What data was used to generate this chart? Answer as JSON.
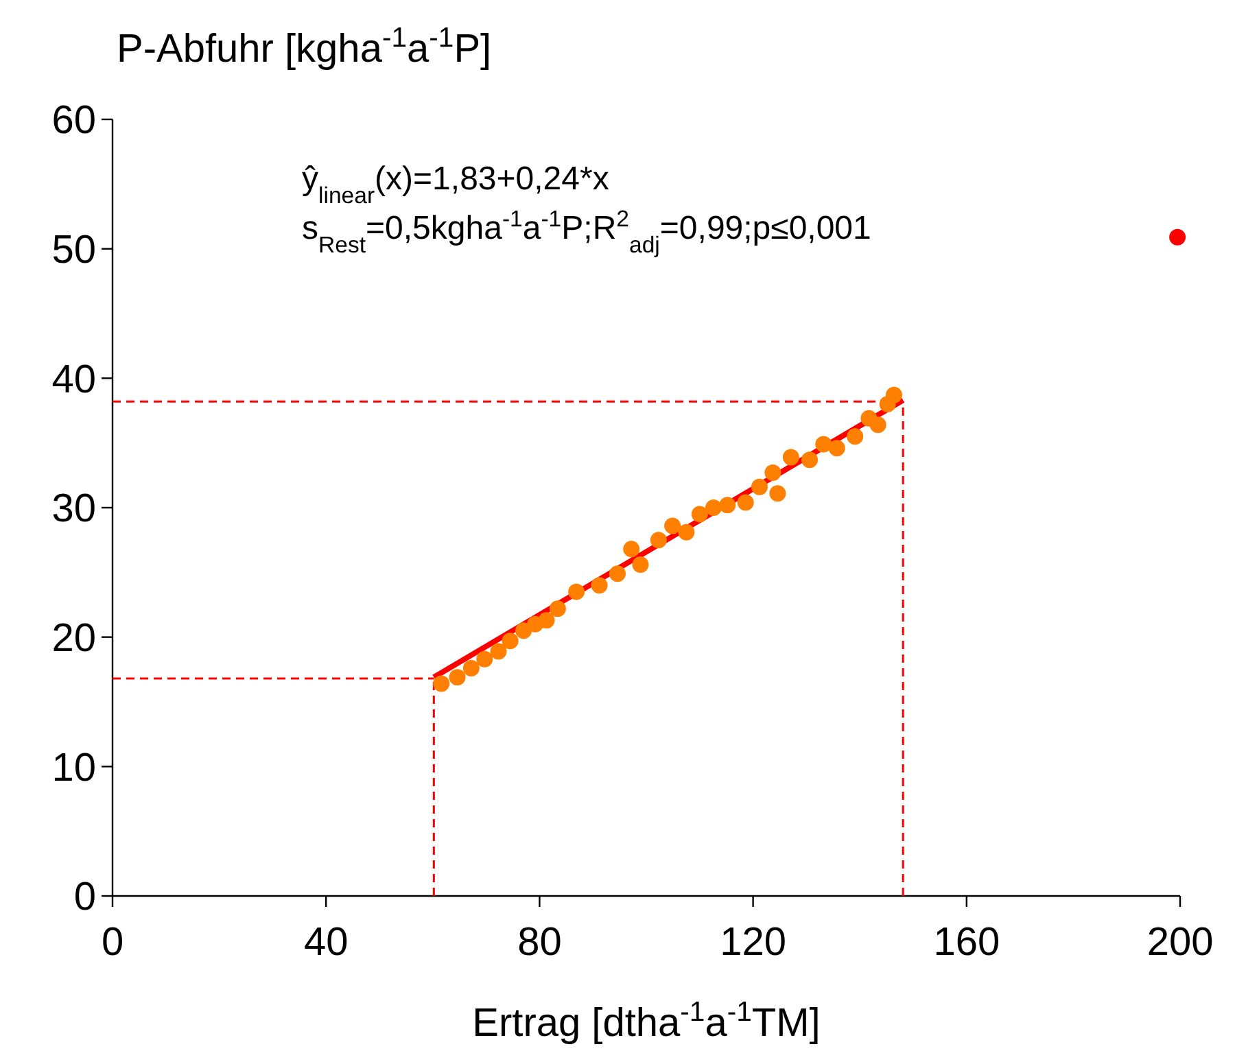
{
  "chart_data": {
    "type": "scatter",
    "ylabel": "P-Abfuhr [kgha$^{-1}$a$^{-1}$P]",
    "xlabel": "Ertrag [dtha$^{-1}$a$^{-1}$TM]",
    "xlim": [
      0,
      200
    ],
    "xticks": [
      0,
      40,
      80,
      120,
      160,
      200
    ],
    "ylim": [
      0,
      60
    ],
    "yticks": [
      0,
      10,
      20,
      30,
      40,
      50,
      60
    ],
    "grid": false,
    "annotations": [
      "ŷ$_{linear}$(x)=1,83+0,24*x",
      "s$_{Rest}$=0,5kgha$^{-1}$a$^{-1}$P;R$^{2}$$_{adj}$=0,99;p≤0,001"
    ],
    "ref_lines": [
      {
        "axis": "y",
        "value": 16.8,
        "color": "#ff0000",
        "line_style": "dashed"
      },
      {
        "axis": "y",
        "value": 38.2,
        "color": "#ff0000",
        "line_style": "dashed"
      },
      {
        "axis": "x",
        "value": 60.2,
        "color": "#ff0000",
        "line_style": "dashed"
      },
      {
        "axis": "x",
        "value": 148.1,
        "color": "#ff0000",
        "line_style": "dashed"
      }
    ],
    "series": [
      {
        "color": "#ff8000",
        "marker": "circle",
        "x": [
          61.6,
          64.6,
          67.2,
          69.7,
          72.3,
          74.5,
          77.0,
          79.2,
          81.3,
          83.4,
          86.9,
          91.2,
          94.6,
          97.2,
          98.9,
          102.3,
          104.9,
          107.5,
          110.0,
          112.6,
          115.2,
          118.6,
          121.2,
          123.7,
          124.6,
          127.1,
          130.6,
          133.2,
          135.7,
          139.1,
          141.7,
          143.4,
          145.2,
          146.4
        ],
        "values": [
          16.4,
          16.9,
          17.6,
          18.3,
          18.9,
          19.7,
          20.5,
          21.0,
          21.3,
          22.2,
          23.5,
          24.0,
          24.9,
          26.8,
          25.6,
          27.5,
          28.6,
          28.1,
          29.5,
          30.0,
          30.2,
          30.4,
          31.6,
          32.7,
          31.1,
          33.9,
          33.7,
          34.9,
          34.6,
          35.5,
          36.9,
          36.4,
          38.0,
          38.7
        ]
      },
      {
        "type": "line",
        "color": "#ff0000",
        "x": [
          60.2,
          148.1
        ],
        "values": [
          16.9,
          38.3
        ],
        "line_style": "solid"
      },
      {
        "color": "#ff0000",
        "marker": "circle",
        "x": [
          199.5
        ],
        "values": [
          50.9
        ]
      }
    ]
  }
}
